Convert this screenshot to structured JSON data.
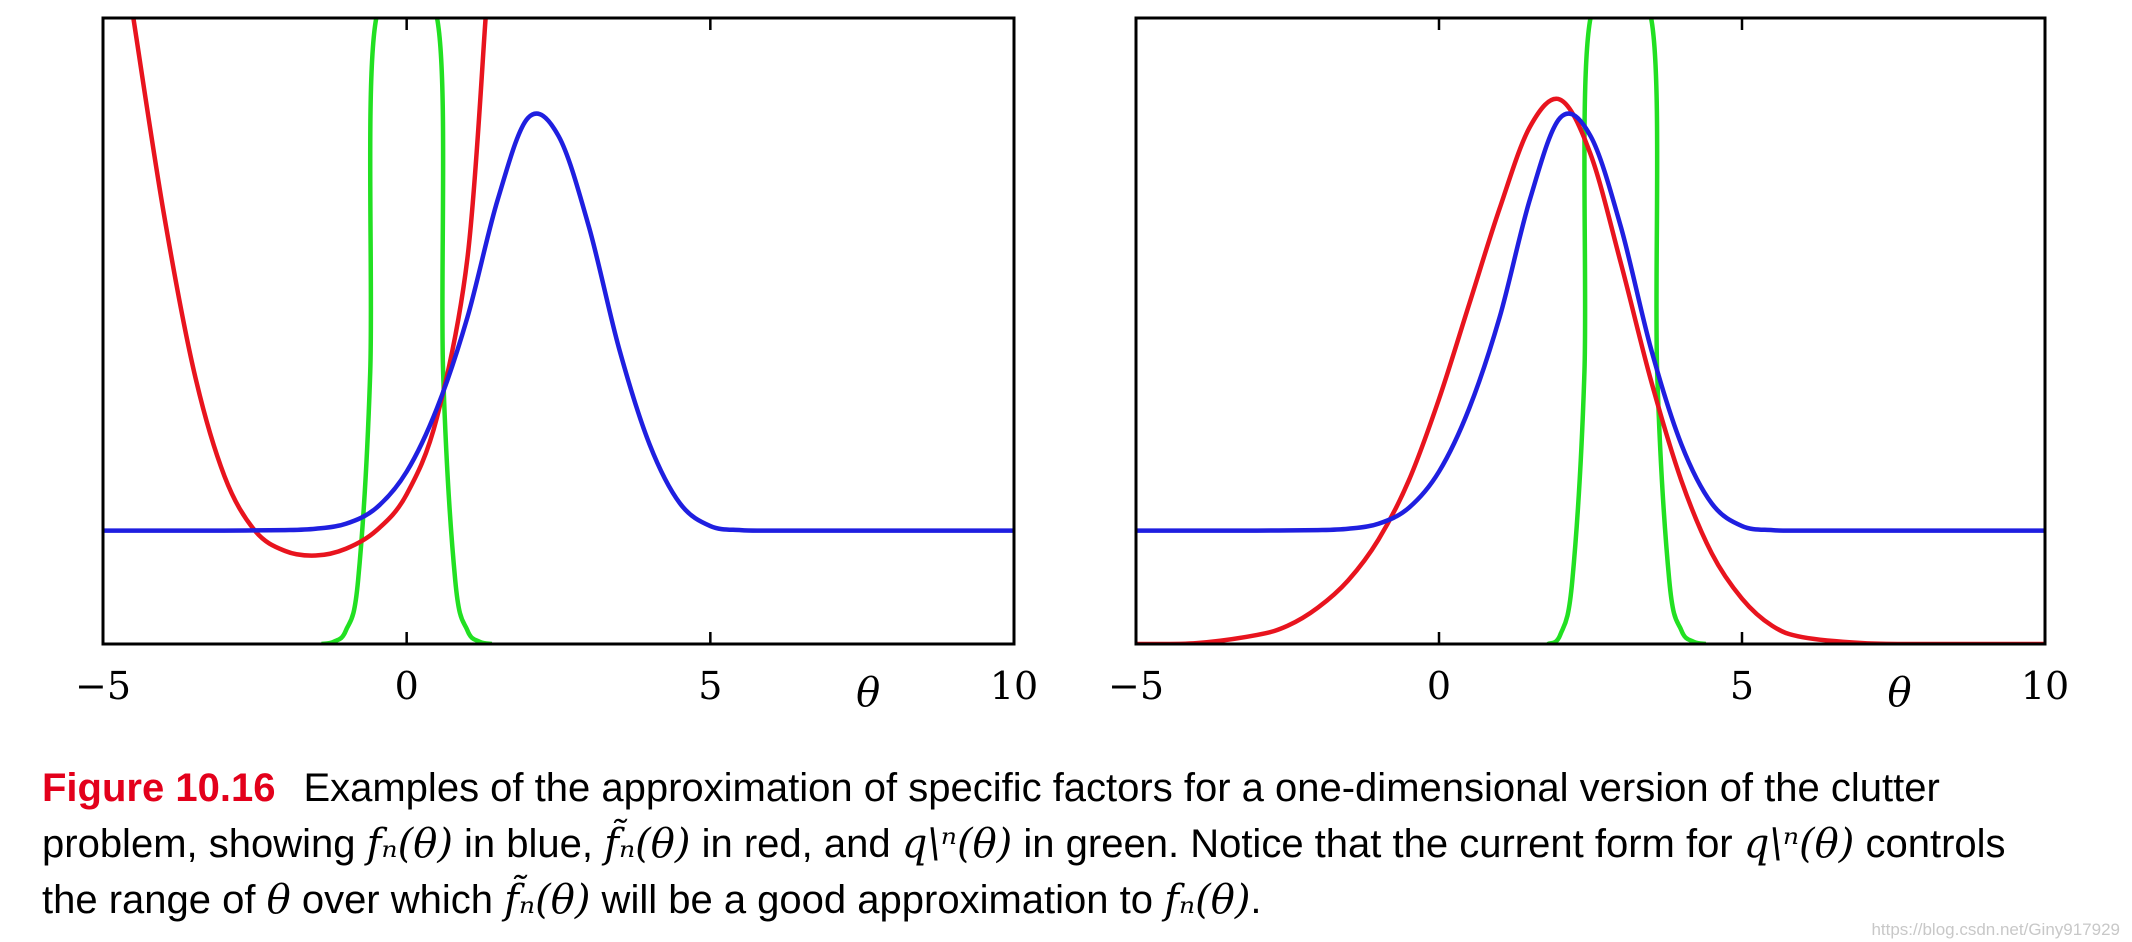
{
  "chart_data": [
    {
      "type": "line",
      "xlabel": "θ",
      "xlim": [
        -5,
        10
      ],
      "xticks": [
        "−5",
        "0",
        "5",
        "10"
      ],
      "ylabel": "",
      "grid": false,
      "series": [
        {
          "color": "#1f1fe0",
          "x": [
            -5,
            -4,
            -3,
            -2,
            -1.5,
            -1,
            -0.5,
            0,
            0.5,
            1,
            1.5,
            2,
            2.5,
            3,
            3.5,
            4,
            4.5,
            5,
            5.5,
            6,
            7,
            8,
            9,
            10
          ],
          "y": [
            0.05,
            0.05,
            0.05,
            0.051,
            0.054,
            0.065,
            0.1,
            0.18,
            0.32,
            0.52,
            0.78,
            0.96,
            0.92,
            0.72,
            0.45,
            0.24,
            0.11,
            0.06,
            0.051,
            0.05,
            0.05,
            0.05,
            0.05,
            0.05
          ]
        },
        {
          "color": "#e8141e",
          "x": [
            -4.5,
            -4,
            -3.5,
            -3,
            -2.5,
            -2,
            -1.5,
            -1,
            -0.5,
            0,
            0.5,
            1,
            1.3
          ],
          "y": [
            1.18,
            0.75,
            0.4,
            0.17,
            0.05,
            0.005,
            -0.005,
            0.01,
            0.05,
            0.13,
            0.3,
            0.65,
            1.18
          ]
        },
        {
          "color": "#22e022",
          "x": [
            -1.4,
            -1.2,
            -1,
            -0.8,
            -0.6,
            -0.5,
            0.5,
            0.6,
            0.8,
            1,
            1.2,
            1.4
          ],
          "y": [
            -0.2,
            -0.195,
            -0.17,
            -0.06,
            0.4,
            1.18,
            1.18,
            0.4,
            -0.06,
            -0.17,
            -0.195,
            -0.2
          ]
        }
      ]
    },
    {
      "type": "line",
      "xlabel": "θ",
      "xlim": [
        -5,
        10
      ],
      "xticks": [
        "−5",
        "0",
        "5",
        "10"
      ],
      "ylabel": "",
      "grid": false,
      "series": [
        {
          "color": "#1f1fe0",
          "x": [
            -5,
            -4,
            -3,
            -2,
            -1.5,
            -1,
            -0.5,
            0,
            0.5,
            1,
            1.5,
            2,
            2.5,
            3,
            3.5,
            4,
            4.5,
            5,
            5.5,
            6,
            7,
            8,
            9,
            10
          ],
          "y": [
            0.05,
            0.05,
            0.05,
            0.051,
            0.054,
            0.065,
            0.1,
            0.18,
            0.32,
            0.52,
            0.78,
            0.96,
            0.92,
            0.72,
            0.45,
            0.24,
            0.11,
            0.06,
            0.051,
            0.05,
            0.05,
            0.05,
            0.05,
            0.05
          ]
        },
        {
          "color": "#e8141e",
          "x": [
            -5,
            -4,
            -3,
            -2.5,
            -2,
            -1.5,
            -1,
            -0.5,
            0,
            0.5,
            1,
            1.5,
            2,
            2.5,
            3,
            3.5,
            4,
            4.5,
            5,
            5.5,
            6,
            7,
            8,
            10
          ],
          "y": [
            -0.2,
            -0.198,
            -0.18,
            -0.16,
            -0.12,
            -0.06,
            0.03,
            0.16,
            0.34,
            0.55,
            0.76,
            0.94,
            1.0,
            0.88,
            0.64,
            0.38,
            0.16,
            0.0,
            -0.1,
            -0.16,
            -0.185,
            -0.198,
            -0.2,
            -0.2
          ]
        },
        {
          "color": "#22e022",
          "x": [
            1.8,
            2,
            2.2,
            2.4,
            2.5,
            3.5,
            3.6,
            3.8,
            4,
            4.2,
            4.4
          ],
          "y": [
            -0.2,
            -0.18,
            -0.06,
            0.4,
            1.18,
            1.18,
            0.4,
            -0.06,
            -0.17,
            -0.195,
            -0.2
          ]
        }
      ]
    }
  ],
  "caption": {
    "figure_label": "Figure 10.16",
    "line1": "Examples of the approximation of specific factors for a one-dimensional version of the clutter",
    "line2_a": "problem, showing ",
    "fn_theta": "fₙ(θ)",
    "line2_b": " in blue, ",
    "ftilde_theta": "f̃ₙ(θ)",
    "line2_c": " in red, and ",
    "q_theta": "q\\ⁿ(θ)",
    "line2_d": " in green. Notice that the current form for ",
    "line2_e": " controls",
    "line3_a": "the range of ",
    "theta": "θ",
    "line3_b": " over which ",
    "line3_c": " will be a good approximation to ",
    "line3_d": "."
  },
  "watermark": "https://blog.csdn.net/Giny917929"
}
